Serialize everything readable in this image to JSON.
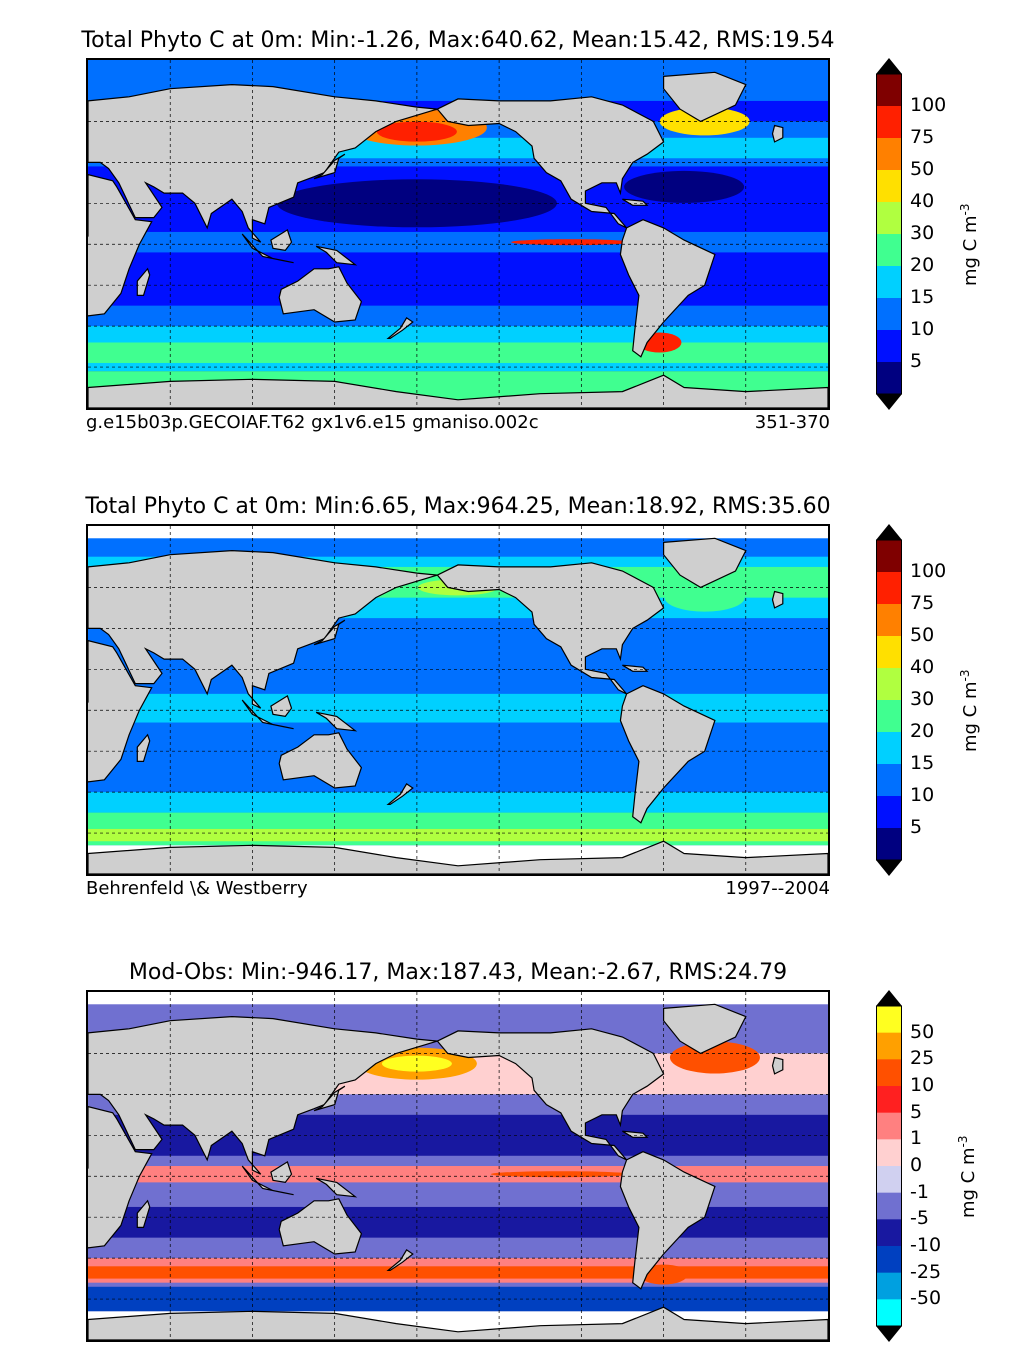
{
  "panels": [
    {
      "title": "Total Phyto C at 0m: Min:-1.26, Max:640.62, Mean:15.42, RMS:19.54",
      "footer_left": "g.e15b03p.GECOIAF.T62 gx1v6.e15 gmaniso.002c",
      "footer_right": "351-370",
      "unit": "mg C m",
      "unit_exp": "-3",
      "ticks": [
        "100",
        "75",
        "50",
        "40",
        "30",
        "20",
        "15",
        "10",
        "5"
      ],
      "colors": [
        "#7f0000",
        "#ff2000",
        "#ff8000",
        "#ffe000",
        "#b0ff40",
        "#40ff90",
        "#00d0ff",
        "#0070ff",
        "#0010ff",
        "#000080"
      ],
      "style": "model"
    },
    {
      "title": "Total Phyto C at 0m: Min:6.65, Max:964.25, Mean:18.92, RMS:35.60",
      "footer_left": "Behrenfeld \\& Westberry",
      "footer_right": "1997--2004",
      "unit": "mg C m",
      "unit_exp": "-3",
      "ticks": [
        "100",
        "75",
        "50",
        "40",
        "30",
        "20",
        "15",
        "10",
        "5"
      ],
      "colors": [
        "#7f0000",
        "#ff2000",
        "#ff8000",
        "#ffe000",
        "#b0ff40",
        "#40ff90",
        "#00d0ff",
        "#0070ff",
        "#0010ff",
        "#000080"
      ],
      "style": "obs"
    },
    {
      "title": "Mod-Obs: Min:-946.17, Max:187.43, Mean:-2.67, RMS:24.79",
      "footer_left": "",
      "footer_right": "",
      "unit": "mg C m",
      "unit_exp": "-3",
      "ticks": [
        "50",
        "25",
        "10",
        "5",
        "1",
        "0",
        "-1",
        "-5",
        "-10",
        "-25",
        "-50"
      ],
      "colors": [
        "#ffff20",
        "#ffa000",
        "#ff5000",
        "#ff2020",
        "#ff8080",
        "#ffd0d0",
        "#d0d0f0",
        "#7070d0",
        "#1818a0",
        "#0040c0",
        "#00a0e0",
        "#00ffff"
      ],
      "style": "diff"
    }
  ]
}
